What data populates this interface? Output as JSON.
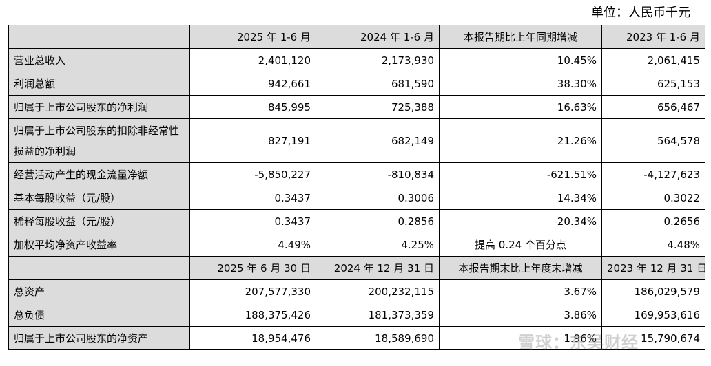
{
  "unit_label": "单位：人民币千元",
  "header1": [
    "",
    "2025 年 1-6 月",
    "2024 年 1-6 月",
    "本报告期比上年同期增减",
    "2023 年 1-6 月"
  ],
  "rows1": [
    {
      "label": "营业总收入",
      "values": [
        "2,401,120",
        "2,173,930",
        "10.45%",
        "2,061,415"
      ]
    },
    {
      "label": "利润总额",
      "values": [
        "942,661",
        "681,590",
        "38.30%",
        "625,153"
      ]
    },
    {
      "label": "归属于上市公司股东的净利润",
      "values": [
        "845,995",
        "725,388",
        "16.63%",
        "656,467"
      ]
    },
    {
      "label": "归属于上市公司股东的扣除非经常性损益的净利润",
      "values": [
        "827,191",
        "682,149",
        "21.26%",
        "564,578"
      ]
    },
    {
      "label": "经营活动产生的现金流量净额",
      "values": [
        "-5,850,227",
        "-810,834",
        "-621.51%",
        "-4,127,623"
      ]
    },
    {
      "label": "基本每股收益（元/股）",
      "values": [
        "0.3437",
        "0.3006",
        "14.34%",
        "0.3022"
      ]
    },
    {
      "label": "稀释每股收益（元/股）",
      "values": [
        "0.3437",
        "0.2856",
        "20.34%",
        "0.2656"
      ]
    },
    {
      "label": "加权平均净资产收益率",
      "values": [
        "4.49%",
        "4.25%",
        "提高 0.24 个百分点",
        "4.48%"
      ]
    }
  ],
  "header2": [
    "",
    "2025 年 6 月 30 日",
    "2024 年 12 月 31 日",
    "本报告期末比上年度末增减",
    "2023 年 12 月 31 日"
  ],
  "rows2": [
    {
      "label": "总资产",
      "values": [
        "207,577,330",
        "200,232,115",
        "3.67%",
        "186,029,579"
      ]
    },
    {
      "label": "总负债",
      "values": [
        "188,375,426",
        "181,373,359",
        "3.86%",
        "169,953,616"
      ]
    },
    {
      "label": "归属于上市公司股东的净资产",
      "values": [
        "18,954,476",
        "18,589,690",
        "1.96%",
        "15,790,674"
      ]
    }
  ],
  "watermark": "雪球：东吴财经"
}
